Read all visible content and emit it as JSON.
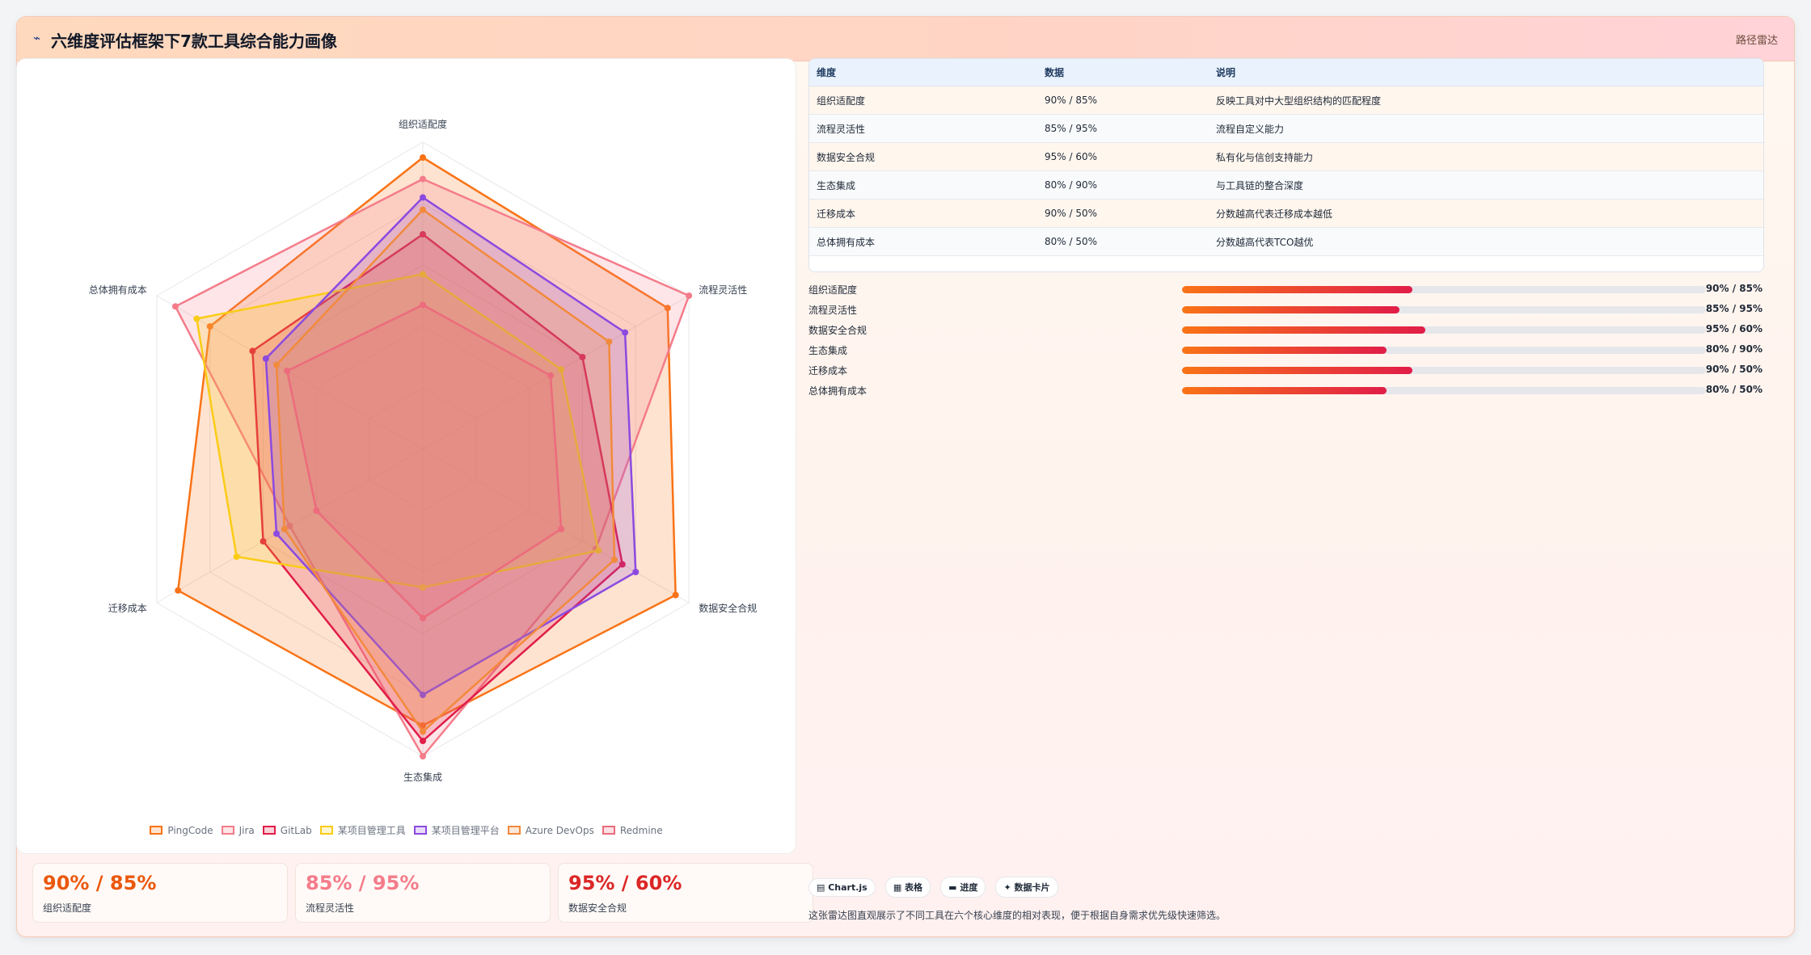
{
  "header": {
    "logo": "⌁",
    "title": "六维度评估框架下7款工具综合能力画像",
    "tag": "路径雷达"
  },
  "chart_data": {
    "type": "radar",
    "axes": [
      "组织适配度",
      "流程灵活性",
      "数据安全合规",
      "生态集成",
      "迁移成本",
      "总体拥有成本"
    ],
    "range": [
      0,
      100
    ],
    "grid": true,
    "legend_position": "bottom",
    "series": [
      {
        "name": "PingCode",
        "color": "#f97316",
        "values": [
          95,
          92,
          95,
          90,
          92,
          80
        ]
      },
      {
        "name": "Jira",
        "color": "#f47c8a",
        "values": [
          88,
          100,
          65,
          100,
          50,
          93
        ]
      },
      {
        "name": "GitLab",
        "color": "#e11d48",
        "values": [
          70,
          60,
          75,
          95,
          60,
          64
        ]
      },
      {
        "name": "某项目管理工具",
        "color": "#facc15",
        "values": [
          57,
          52,
          66,
          45,
          70,
          85
        ]
      },
      {
        "name": "某项目管理平台",
        "color": "#8b4ae0",
        "values": [
          82,
          76,
          80,
          80,
          55,
          59
        ]
      },
      {
        "name": "Azure DevOps",
        "color": "#f28a3c",
        "values": [
          78,
          70,
          72,
          92,
          52,
          55
        ]
      },
      {
        "name": "Redmine",
        "color": "#ec6b7c",
        "values": [
          47,
          48,
          52,
          55,
          40,
          51
        ]
      }
    ]
  },
  "table": {
    "headers": [
      "维度",
      "数据",
      "说明"
    ],
    "rows": [
      [
        "组织适配度",
        "90% / 85%",
        "反映工具对中大型组织结构的匹配程度"
      ],
      [
        "流程灵活性",
        "85% / 95%",
        "流程自定义能力"
      ],
      [
        "数据安全合规",
        "95% / 60%",
        "私有化与信创支持能力"
      ],
      [
        "生态集成",
        "80% / 90%",
        "与工具链的整合深度"
      ],
      [
        "迁移成本",
        "90% / 50%",
        "分数越高代表迁移成本越低"
      ],
      [
        "总体拥有成本",
        "80% / 50%",
        "分数越高代表TCO越优"
      ]
    ]
  },
  "progress": [
    {
      "label": "组织适配度",
      "value": "90% / 85%",
      "fill": 0.44
    },
    {
      "label": "流程灵活性",
      "value": "85% / 95%",
      "fill": 0.415
    },
    {
      "label": "数据安全合规",
      "value": "95% / 60%",
      "fill": 0.465
    },
    {
      "label": "生态集成",
      "value": "80% / 90%",
      "fill": 0.39
    },
    {
      "label": "迁移成本",
      "value": "90% / 50%",
      "fill": 0.44
    },
    {
      "label": "总体拥有成本",
      "value": "80% / 50%",
      "fill": 0.39
    }
  ],
  "stats": [
    {
      "value": "90% / 85%",
      "label": "组织适配度",
      "color": "#ea580c"
    },
    {
      "value": "85% / 95%",
      "label": "流程灵活性",
      "color": "#f47c8a"
    },
    {
      "value": "95% / 60%",
      "label": "数据安全合规",
      "color": "#dc2626"
    }
  ],
  "chips": [
    "▤ Chart.js",
    "▦ 表格",
    "▬ 进度",
    "✦ 数据卡片"
  ],
  "note": "这张雷达图直观展示了不同工具在六个核心维度的相对表现，便于根据自身需求优先级快速筛选。"
}
